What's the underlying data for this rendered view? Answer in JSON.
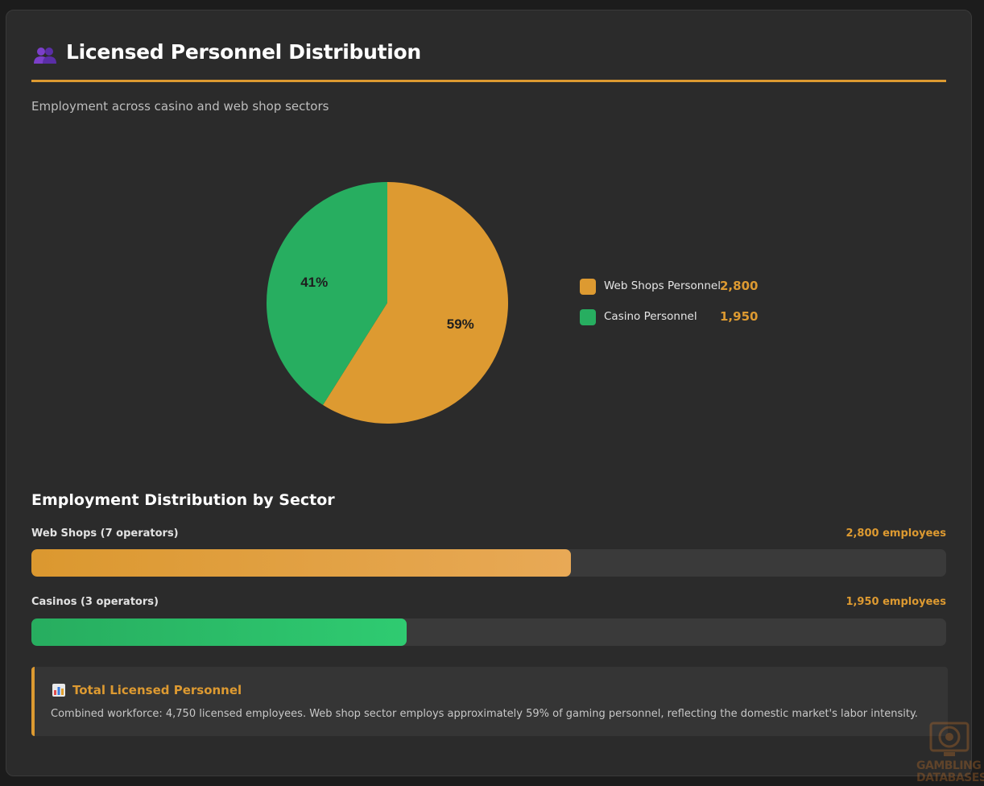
{
  "header": {
    "title": "Licensed Personnel Distribution",
    "subtitle": "Employment across casino and web shop sectors"
  },
  "colors": {
    "accent": "#dd9a31",
    "web_shops": "#dd9a31",
    "casino": "#27ae60",
    "background": "#2b2b2b"
  },
  "chart_data": [
    {
      "type": "pie",
      "slices": [
        {
          "label": "Web Shops Personnel",
          "value": 2800,
          "value_text": "2,800",
          "percent_text": "59%",
          "color": "#dd9a31"
        },
        {
          "label": "Casino Personnel",
          "value": 1950,
          "value_text": "1,950",
          "percent_text": "41%",
          "color": "#27ae60"
        }
      ],
      "legend_placement": "right"
    },
    {
      "type": "bar",
      "title": "Employment Distribution by Sector",
      "orientation": "horizontal",
      "scale_max": 4750,
      "bars": [
        {
          "label": "Web Shops (7 operators)",
          "value": 2800,
          "value_text": "2,800 employees",
          "color": "#dd9a31"
        },
        {
          "label": "Casinos (3 operators)",
          "value": 1950,
          "value_text": "1,950 employees",
          "color": "#27ae60"
        }
      ]
    }
  ],
  "summary": {
    "title": "Total Licensed Personnel",
    "text": "Combined workforce: 4,750 licensed employees. Web shop sector employs approximately 59% of gaming personnel, reflecting the domestic market's labor intensity."
  },
  "watermark": {
    "line1": "GAMBLING",
    "line2": "DATABASES"
  }
}
